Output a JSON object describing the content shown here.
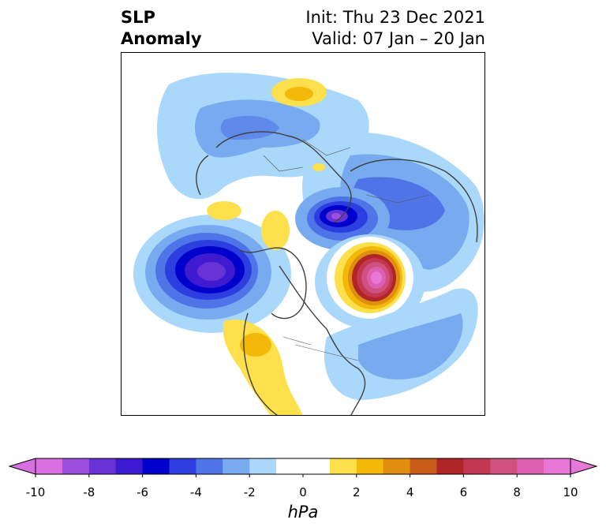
{
  "title": {
    "left_line1": "SLP",
    "left_line2": "Anomaly",
    "right_line1": "Init: Thu 23 Dec 2021",
    "right_line2": "Valid: 07 Jan – 20 Jan"
  },
  "colorbar": {
    "units": "hPa",
    "ticks": [
      "-10",
      "-8",
      "-6",
      "-4",
      "-2",
      "0",
      "2",
      "4",
      "6",
      "8",
      "10"
    ],
    "bins": [
      {
        "value": -10,
        "color": "#d86fe0"
      },
      {
        "value": -9,
        "color": "#9d50de"
      },
      {
        "value": -8,
        "color": "#6733d6"
      },
      {
        "value": -7,
        "color": "#3e1ad0"
      },
      {
        "value": -6,
        "color": "#0000cc"
      },
      {
        "value": -5,
        "color": "#2c3ee0"
      },
      {
        "value": -4,
        "color": "#4f74e8"
      },
      {
        "value": -3,
        "color": "#78aaf0"
      },
      {
        "value": -2,
        "color": "#aad8fa"
      },
      {
        "value": -1,
        "color": "#ffffff"
      },
      {
        "value": 0,
        "color": "#ffffff"
      },
      {
        "value": 1,
        "color": "#fde04c"
      },
      {
        "value": 2,
        "color": "#f2b90a"
      },
      {
        "value": 3,
        "color": "#e08e10"
      },
      {
        "value": 4,
        "color": "#c95b18"
      },
      {
        "value": 5,
        "color": "#b02525"
      },
      {
        "value": 6,
        "color": "#c23850"
      },
      {
        "value": 7,
        "color": "#d05080"
      },
      {
        "value": 8,
        "color": "#dd60b0"
      },
      {
        "value": 9,
        "color": "#e878d8"
      }
    ]
  }
}
